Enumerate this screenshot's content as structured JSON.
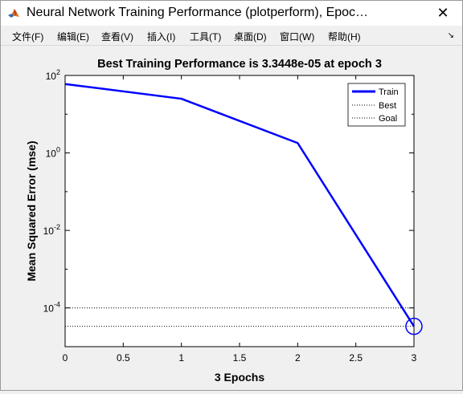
{
  "window": {
    "title": "Neural Network Training Performance (plotperform), Epoc…",
    "close_glyph": "✕"
  },
  "menu": {
    "items": [
      "文件(F)",
      "编辑(E)",
      "查看(V)",
      "插入(I)",
      "工具(T)",
      "桌面(D)",
      "窗口(W)",
      "帮助(H)"
    ],
    "dock_glyph": "↘"
  },
  "chart_data": {
    "type": "line",
    "title": "Best Training Performance is 3.3448e-05 at epoch 3",
    "xlabel": "3 Epochs",
    "ylabel": "Mean Squared Error  (mse)",
    "xlim": [
      0,
      3
    ],
    "ylim": [
      1e-05,
      100
    ],
    "y_scale": "log",
    "x_ticks": [
      "0",
      "0.5",
      "1",
      "1.5",
      "2",
      "2.5",
      "3"
    ],
    "x_tick_values": [
      0,
      0.5,
      1,
      1.5,
      2,
      2.5,
      3
    ],
    "y_ticks": [
      {
        "base": "10",
        "exp": "2",
        "value": 100
      },
      {
        "base": "10",
        "exp": "0",
        "value": 1
      },
      {
        "base": "10",
        "exp": "-2",
        "value": 0.01
      },
      {
        "base": "10",
        "exp": "-4",
        "value": 0.0001
      }
    ],
    "series": [
      {
        "name": "Train",
        "color": "#0000ff",
        "x": [
          0,
          1,
          2,
          3
        ],
        "y": [
          60,
          25,
          1.8,
          3.3448e-05
        ]
      }
    ],
    "best": {
      "name": "Best",
      "epoch": 3,
      "value": 3.3448e-05,
      "color": "#000000"
    },
    "goal": {
      "name": "Goal",
      "value": 0.0001,
      "color": "#000000"
    },
    "legend": {
      "position": "top-right",
      "entries": [
        "Train",
        "Best",
        "Goal"
      ]
    },
    "grid": false
  }
}
